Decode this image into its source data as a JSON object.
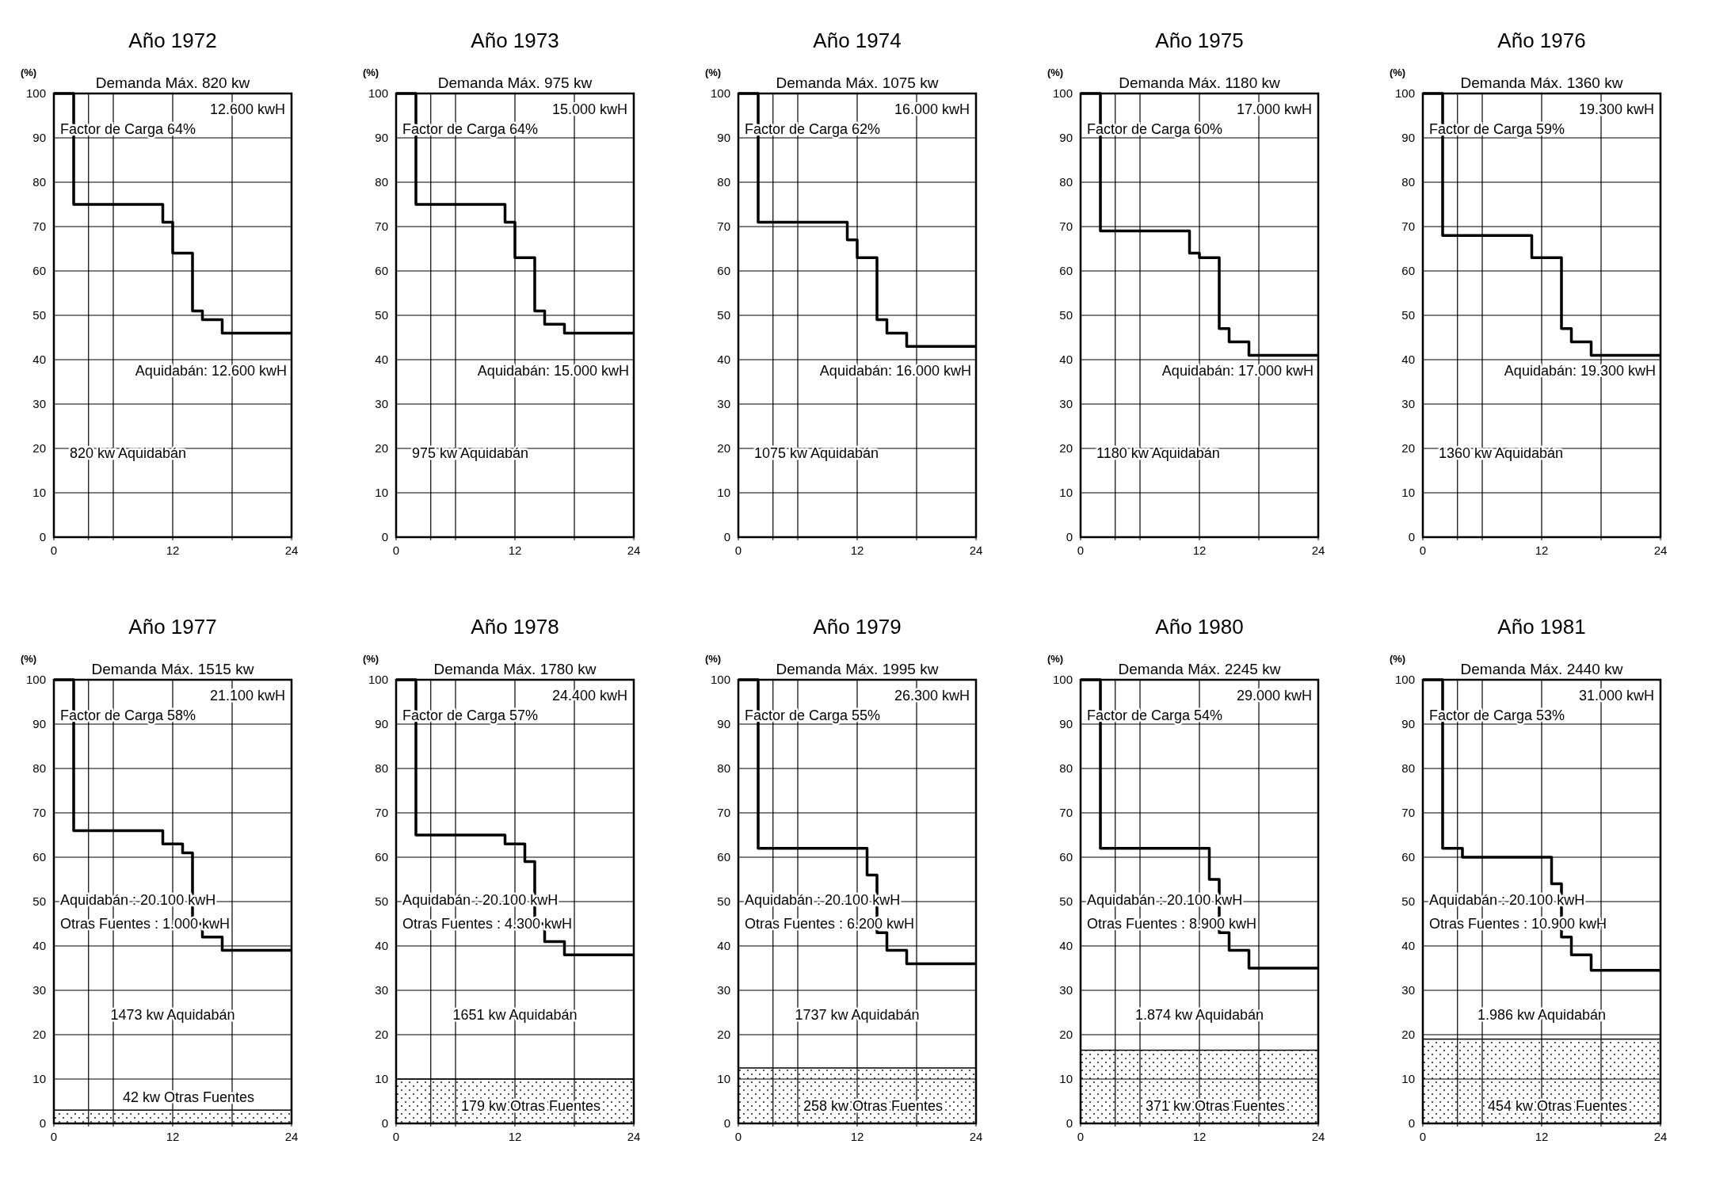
{
  "chart_data": [
    {
      "type": "step",
      "title": "Año 1972",
      "ylabel": "(%)",
      "x": [
        0,
        2,
        11,
        12,
        14,
        15,
        17,
        24
      ],
      "series": [
        {
          "color": "#000000",
          "values": [
            100,
            75,
            71,
            64,
            51,
            49,
            46,
            46
          ]
        }
      ],
      "xlim": [
        0,
        24
      ],
      "xticks": [
        0,
        {
          "value": 3.5,
          "label": null
        },
        {
          "value": 6,
          "label": null
        },
        12,
        {
          "value": 18,
          "label": null
        },
        24
      ],
      "ylim": [
        0,
        100
      ],
      "yticks": [
        0,
        10,
        20,
        30,
        40,
        50,
        60,
        70,
        80,
        90,
        100
      ],
      "grid": true,
      "annotations": [
        "Demanda Máx. 820 kw",
        "12.600 kwH",
        "Factor de Carga 64%",
        "Aquidabán: 12.600 kwH",
        "820 kw Aquidabán"
      ]
    },
    {
      "type": "step",
      "title": "Año 1973",
      "ylabel": "(%)",
      "x": [
        0,
        2,
        11,
        12,
        14,
        15,
        17,
        24
      ],
      "series": [
        {
          "color": "#000000",
          "values": [
            100,
            75,
            71,
            63,
            51,
            48,
            46,
            46
          ]
        }
      ],
      "xlim": [
        0,
        24
      ],
      "xticks": [
        0,
        {
          "value": 3.5,
          "label": null
        },
        {
          "value": 6,
          "label": null
        },
        12,
        {
          "value": 18,
          "label": null
        },
        24
      ],
      "ylim": [
        0,
        100
      ],
      "yticks": [
        0,
        10,
        20,
        30,
        40,
        50,
        60,
        70,
        80,
        90,
        100
      ],
      "grid": true,
      "annotations": [
        "Demanda Máx. 975 kw",
        "15.000 kwH",
        "Factor de Carga 64%",
        "Aquidabán: 15.000 kwH",
        "975 kw Aquidabán"
      ]
    },
    {
      "type": "step",
      "title": "Año 1974",
      "ylabel": "(%)",
      "x": [
        0,
        2,
        11,
        12,
        14,
        15,
        17,
        24
      ],
      "series": [
        {
          "color": "#000000",
          "values": [
            100,
            71,
            67,
            63,
            49,
            46,
            43,
            43
          ]
        }
      ],
      "xlim": [
        0,
        24
      ],
      "xticks": [
        0,
        {
          "value": 3.5,
          "label": null
        },
        {
          "value": 6,
          "label": null
        },
        12,
        {
          "value": 18,
          "label": null
        },
        24
      ],
      "ylim": [
        0,
        100
      ],
      "yticks": [
        0,
        10,
        20,
        30,
        40,
        50,
        60,
        70,
        80,
        90,
        100
      ],
      "grid": true,
      "annotations": [
        "Demanda Máx. 1075 kw",
        "16.000 kwH",
        "Factor de Carga 62%",
        "Aquidabán: 16.000 kwH",
        "1075 kw Aquidabán"
      ]
    },
    {
      "type": "step",
      "title": "Año 1975",
      "ylabel": "(%)",
      "x": [
        0,
        2,
        11,
        12,
        14,
        15,
        17,
        24
      ],
      "series": [
        {
          "color": "#000000",
          "values": [
            100,
            69,
            64,
            63,
            47,
            44,
            41,
            41
          ]
        }
      ],
      "xlim": [
        0,
        24
      ],
      "xticks": [
        0,
        {
          "value": 3.5,
          "label": null
        },
        {
          "value": 6,
          "label": null
        },
        12,
        {
          "value": 18,
          "label": null
        },
        24
      ],
      "ylim": [
        0,
        100
      ],
      "yticks": [
        0,
        10,
        20,
        30,
        40,
        50,
        60,
        70,
        80,
        90,
        100
      ],
      "grid": true,
      "annotations": [
        "Demanda Máx. 1180 kw",
        "17.000 kwH",
        "Factor de Carga 60%",
        "Aquidabán: 17.000 kwH",
        "1180 kw Aquidabán"
      ]
    },
    {
      "type": "step",
      "title": "Año 1976",
      "ylabel": "(%)",
      "x": [
        0,
        2,
        11,
        14,
        15,
        17,
        24
      ],
      "series": [
        {
          "color": "#000000",
          "values": [
            100,
            68,
            63,
            47,
            44,
            41,
            41
          ]
        }
      ],
      "xlim": [
        0,
        24
      ],
      "xticks": [
        0,
        {
          "value": 3.5,
          "label": null
        },
        {
          "value": 6,
          "label": null
        },
        12,
        {
          "value": 18,
          "label": null
        },
        24
      ],
      "ylim": [
        0,
        100
      ],
      "yticks": [
        0,
        10,
        20,
        30,
        40,
        50,
        60,
        70,
        80,
        90,
        100
      ],
      "grid": true,
      "annotations": [
        "Demanda Máx. 1360 kw",
        "19.300 kwH",
        "Factor de Carga 59%",
        "Aquidabán: 19.300 kwH",
        "1360 kw Aquidabán"
      ]
    },
    {
      "type": "step",
      "title": "Año 1977",
      "ylabel": "(%)",
      "x": [
        0,
        2,
        11,
        13,
        14,
        15,
        17,
        24
      ],
      "series": [
        {
          "color": "#000000",
          "values": [
            100,
            66,
            63,
            61,
            45,
            42,
            39,
            39
          ]
        }
      ],
      "xlim": [
        0,
        24
      ],
      "xticks": [
        0,
        {
          "value": 3.5,
          "label": null
        },
        {
          "value": 6,
          "label": null
        },
        12,
        {
          "value": 18,
          "label": null
        },
        24
      ],
      "ylim": [
        0,
        100
      ],
      "yticks": [
        0,
        10,
        20,
        30,
        40,
        50,
        60,
        70,
        80,
        90,
        100
      ],
      "grid": true,
      "bands": [
        {
          "axis": "y",
          "from": 0,
          "to": 3
        }
      ],
      "annotations": [
        "Demanda Máx. 1515 kw",
        "21.100 kwH",
        "Factor de Carga 58%",
        "Aquidabán : 20.100 kwH",
        "Otras Fuentes : 1.000 kwH",
        "1473 kw Aquidabán",
        "42 kw Otras Fuentes"
      ]
    },
    {
      "type": "step",
      "title": "Año 1978",
      "ylabel": "(%)",
      "x": [
        0,
        2,
        11,
        13,
        14,
        15,
        17,
        24
      ],
      "series": [
        {
          "color": "#000000",
          "values": [
            100,
            65,
            63,
            59,
            45,
            41,
            38,
            38
          ]
        }
      ],
      "xlim": [
        0,
        24
      ],
      "xticks": [
        0,
        {
          "value": 3.5,
          "label": null
        },
        {
          "value": 6,
          "label": null
        },
        12,
        {
          "value": 18,
          "label": null
        },
        24
      ],
      "ylim": [
        0,
        100
      ],
      "yticks": [
        0,
        10,
        20,
        30,
        40,
        50,
        60,
        70,
        80,
        90,
        100
      ],
      "grid": true,
      "bands": [
        {
          "axis": "y",
          "from": 0,
          "to": 10
        }
      ],
      "annotations": [
        "Demanda Máx. 1780 kw",
        "24.400 kwH",
        "Factor de Carga 57%",
        "Aquidabán : 20.100 kwH",
        "Otras Fuentes : 4.300 kwH",
        "1651 kw Aquidabán",
        "179 kw Otras Fuentes"
      ]
    },
    {
      "type": "step",
      "title": "Año 1979",
      "ylabel": "(%)",
      "x": [
        0,
        2,
        13,
        14,
        15,
        17,
        24
      ],
      "series": [
        {
          "color": "#000000",
          "values": [
            100,
            62,
            56,
            43,
            39,
            36,
            36
          ]
        }
      ],
      "xlim": [
        0,
        24
      ],
      "xticks": [
        0,
        {
          "value": 3.5,
          "label": null
        },
        {
          "value": 6,
          "label": null
        },
        12,
        {
          "value": 18,
          "label": null
        },
        24
      ],
      "ylim": [
        0,
        100
      ],
      "yticks": [
        0,
        10,
        20,
        30,
        40,
        50,
        60,
        70,
        80,
        90,
        100
      ],
      "grid": true,
      "bands": [
        {
          "axis": "y",
          "from": 0,
          "to": 12.5
        }
      ],
      "annotations": [
        "Demanda Máx. 1995 kw",
        "26.300 kwH",
        "Factor de Carga 55%",
        "Aquidabán : 20.100 kwH",
        "Otras Fuentes : 6.200 kwH",
        "1737 kw Aquidabán",
        "258 kw Otras Fuentes"
      ]
    },
    {
      "type": "step",
      "title": "Año 1980",
      "ylabel": "(%)",
      "x": [
        0,
        2,
        13,
        14,
        15,
        17,
        24
      ],
      "series": [
        {
          "color": "#000000",
          "values": [
            100,
            62,
            55,
            43,
            39,
            35,
            35
          ]
        }
      ],
      "xlim": [
        0,
        24
      ],
      "xticks": [
        0,
        {
          "value": 3.5,
          "label": null
        },
        {
          "value": 6,
          "label": null
        },
        12,
        {
          "value": 18,
          "label": null
        },
        24
      ],
      "ylim": [
        0,
        100
      ],
      "yticks": [
        0,
        10,
        20,
        30,
        40,
        50,
        60,
        70,
        80,
        90,
        100
      ],
      "grid": true,
      "bands": [
        {
          "axis": "y",
          "from": 0,
          "to": 16.5
        }
      ],
      "annotations": [
        "Demanda Máx. 2245 kw",
        "29.000 kwH",
        "Factor de Carga 54%",
        "Aquidabán : 20.100 kwH",
        "Otras Fuentes : 8.900 kwH",
        "1.874 kw Aquidabán",
        "371 kw Otras Fuentes"
      ]
    },
    {
      "type": "step",
      "title": "Año 1981",
      "ylabel": "(%)",
      "x": [
        0,
        2,
        4,
        13,
        14,
        15,
        17,
        24
      ],
      "series": [
        {
          "color": "#000000",
          "values": [
            100,
            62,
            60,
            54,
            42,
            38,
            34.5,
            34.5
          ]
        }
      ],
      "xlim": [
        0,
        24
      ],
      "xticks": [
        0,
        {
          "value": 3.5,
          "label": null
        },
        {
          "value": 6,
          "label": null
        },
        12,
        {
          "value": 18,
          "label": null
        },
        24
      ],
      "ylim": [
        0,
        100
      ],
      "yticks": [
        0,
        10,
        20,
        30,
        40,
        50,
        60,
        70,
        80,
        90,
        100
      ],
      "grid": true,
      "bands": [
        {
          "axis": "y",
          "from": 0,
          "to": 19
        }
      ],
      "annotations": [
        "Demanda Máx. 2440 kw",
        "31.000 kwH",
        "Factor de Carga 53%",
        "Aquidabán : 20.100 kwH",
        "Otras Fuentes : 10.900 kwH",
        "1.986 kw Aquidabán",
        "454 kw Otras Fuentes"
      ]
    }
  ]
}
